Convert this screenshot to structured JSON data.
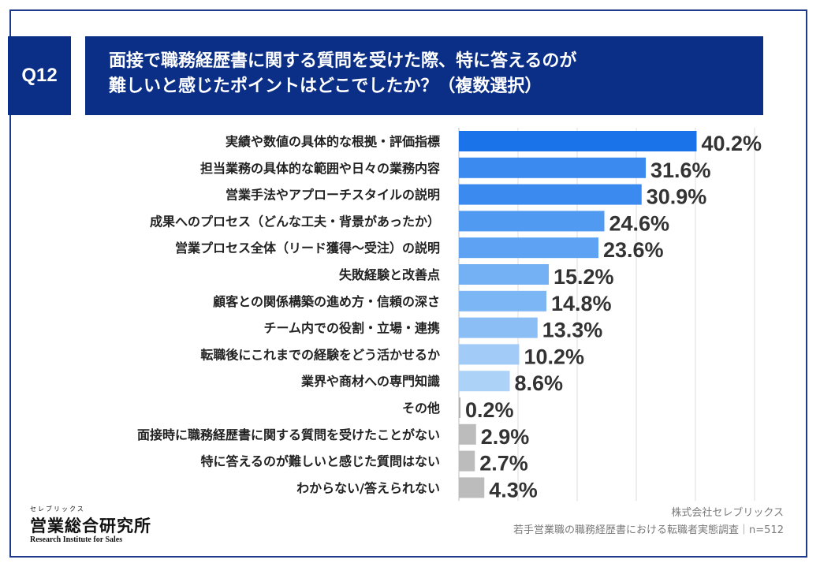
{
  "header": {
    "question_tag": "Q12",
    "title_line1": "面接で職務経歴書に関する質問を受けた際、特に答えるのが",
    "title_line2": "難しいと感じたポイントはどこでしたか？（複数選択）"
  },
  "chart_data": {
    "type": "bar",
    "orientation": "horizontal",
    "categories": [
      "実績や数値の具体的な根拠・評価指標",
      "担当業務の具体的な範囲や日々の業務内容",
      "営業手法やアプローチスタイルの説明",
      "成果へのプロセス（どんな工夫・背景があったか）",
      "営業プロセス全体（リード獲得〜受注）の説明",
      "失敗経験と改善点",
      "顧客との関係構築の進め方・信頼の深さ",
      "チーム内での役割・立場・連携",
      "転職後にこれまでの経験をどう活かせるか",
      "業界や商材への専門知識",
      "その他",
      "面接時に職務経歴書に関する質問を受けたことがない",
      "特に答えるのが難しいと感じた質問はない",
      "わからない/答えられない"
    ],
    "values": [
      40.2,
      31.6,
      30.9,
      24.6,
      23.6,
      15.2,
      14.8,
      13.3,
      10.2,
      8.6,
      0.2,
      2.9,
      2.7,
      4.3
    ],
    "value_labels": [
      "40.2%",
      "31.6%",
      "30.9%",
      "24.6%",
      "23.6%",
      "15.2%",
      "14.8%",
      "13.3%",
      "10.2%",
      "8.6%",
      "0.2%",
      "2.9%",
      "2.7%",
      "4.3%"
    ],
    "colors": [
      "#1a73e8",
      "#3b8aef",
      "#3b8aef",
      "#519af2",
      "#5ea3f3",
      "#74b0f4",
      "#7db6f5",
      "#8cbef6",
      "#a3cbf7",
      "#add2f8",
      "#b0b0b0",
      "#bcbcbc",
      "#bcbcbc",
      "#bcbcbc"
    ],
    "xlim": [
      0,
      50
    ],
    "grid": true
  },
  "footer": {
    "logo_kana": "セレブリックス",
    "logo_main": "営業総合研究所",
    "logo_en": "Research Institute for Sales",
    "company": "株式会社セレブリックス",
    "survey": "若手営業職の職務経歴書における転職者実態調査｜n=512"
  }
}
